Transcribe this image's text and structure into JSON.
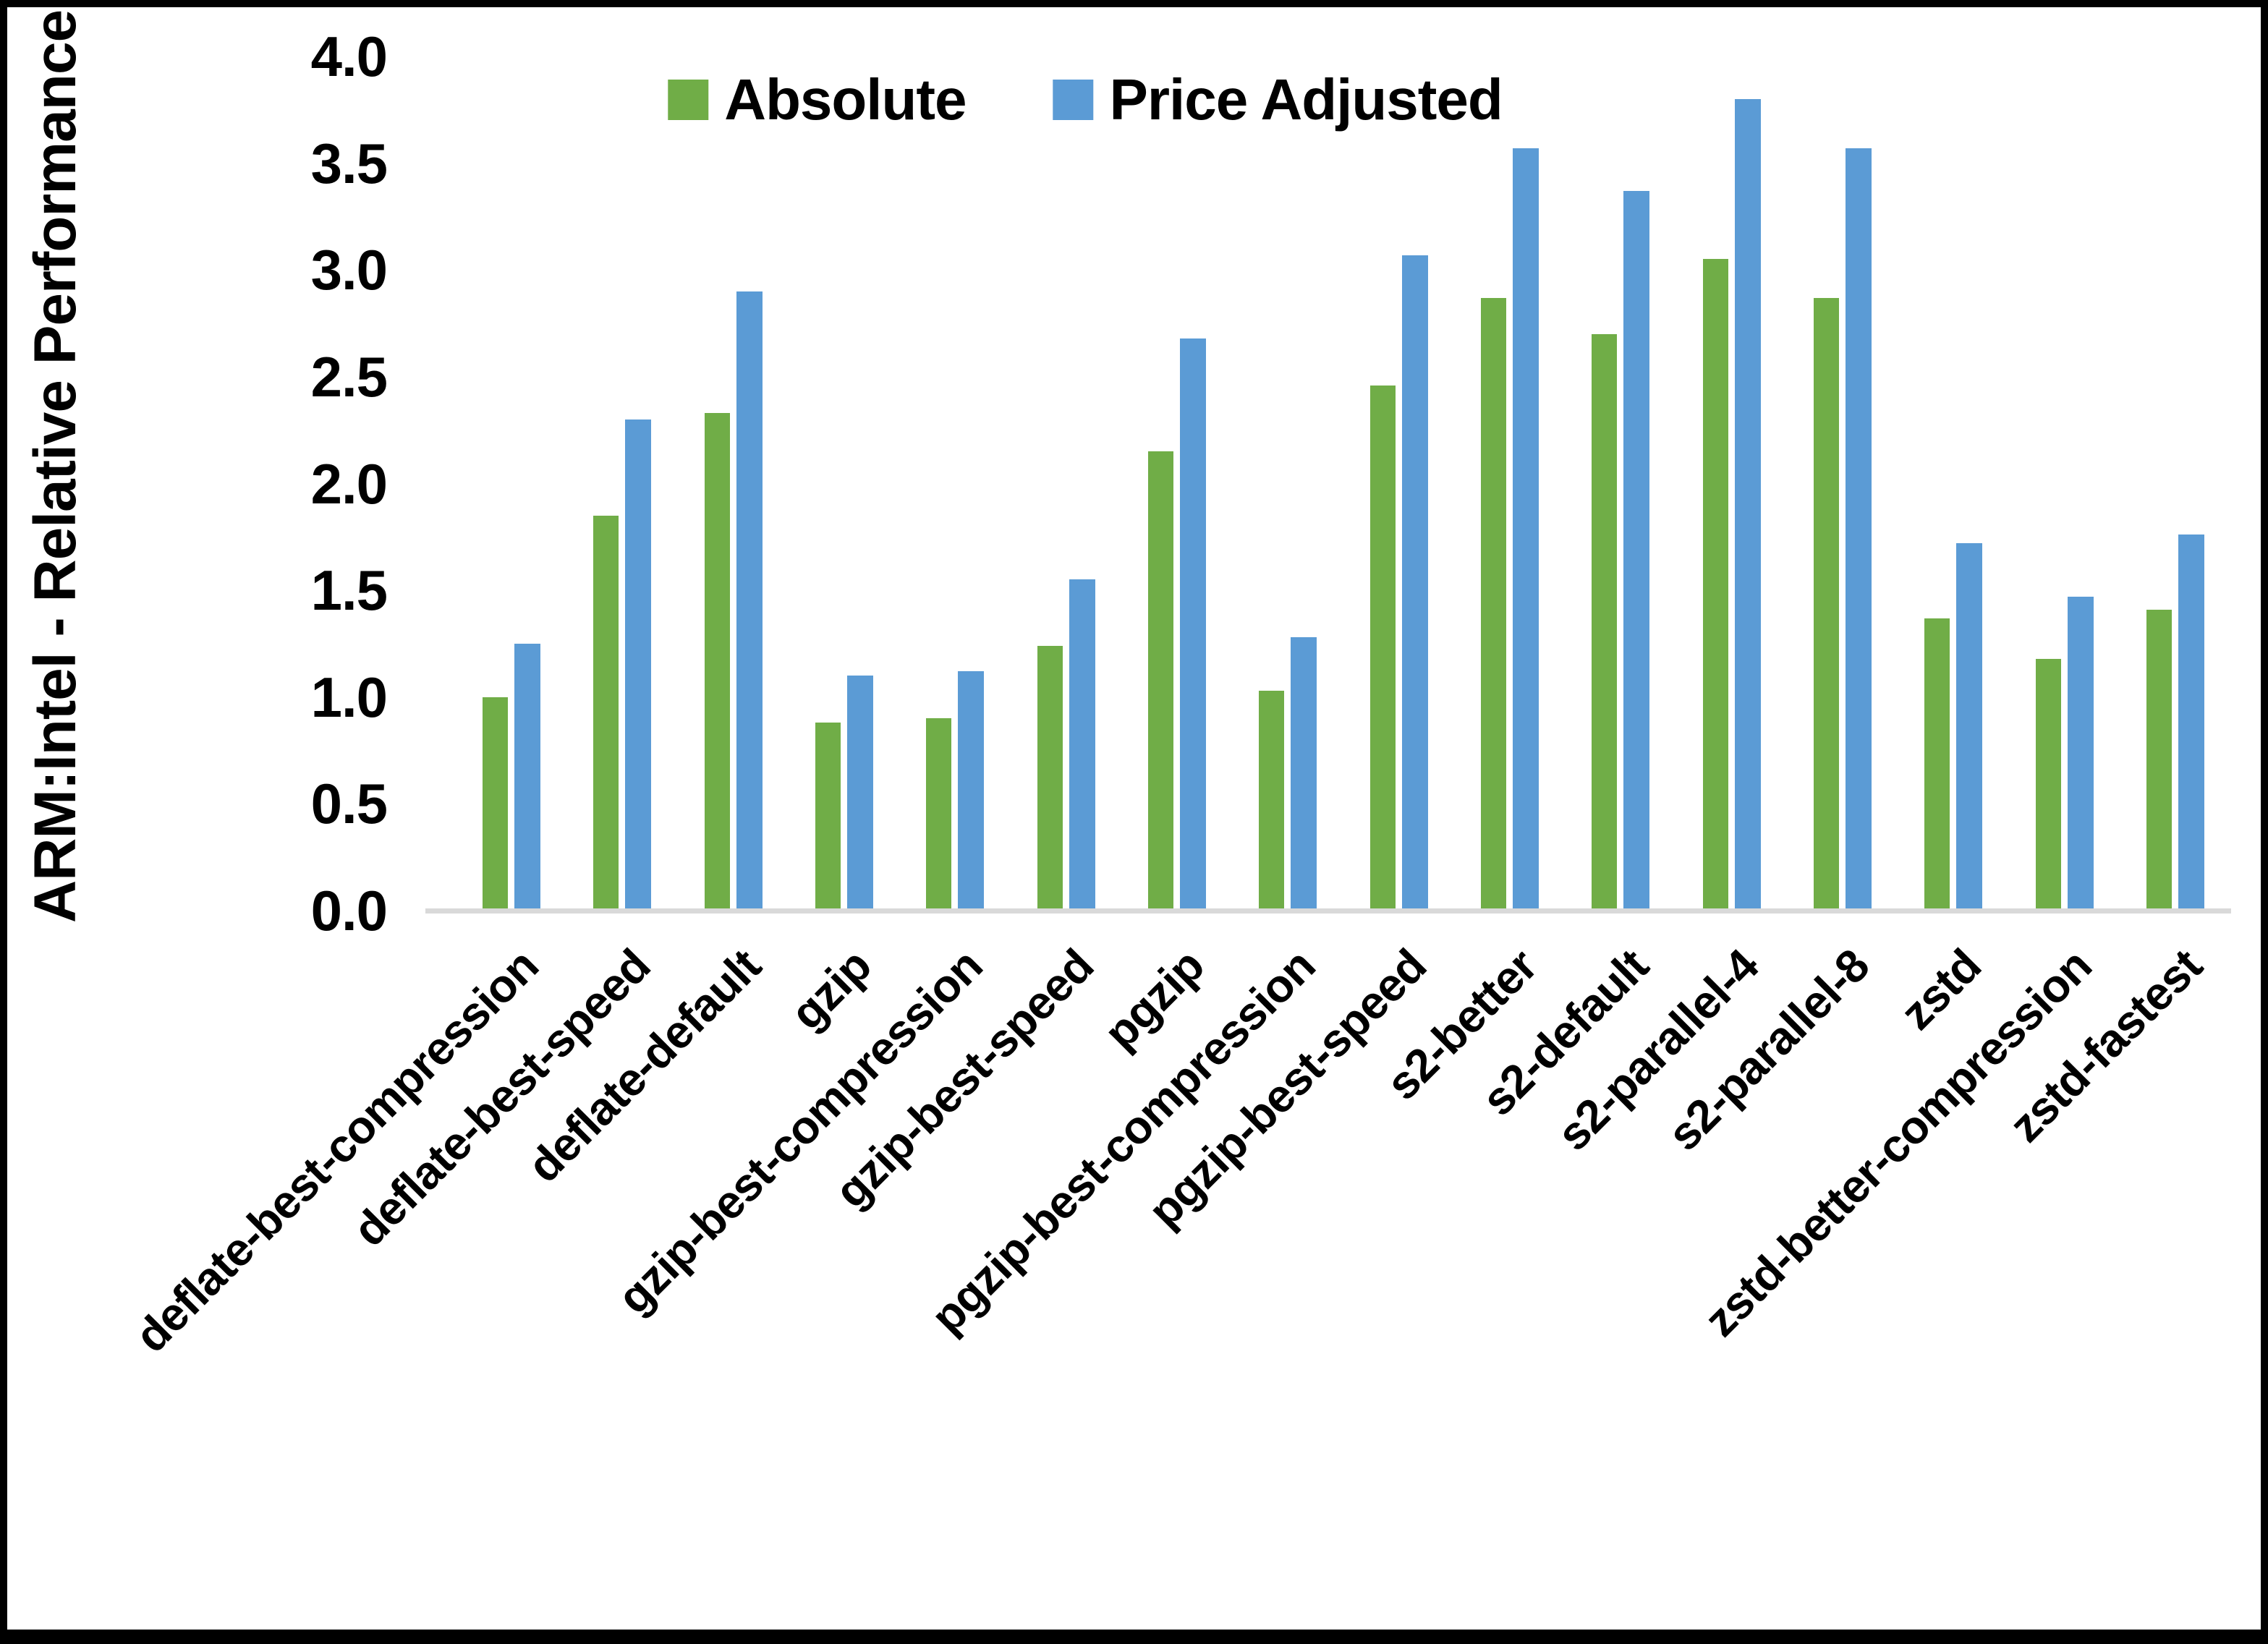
{
  "chart_data": {
    "type": "bar",
    "title": "",
    "xlabel": "",
    "ylabel": "ARM:Intel - Relative Performance",
    "ylim": [
      0.0,
      4.0
    ],
    "ytick_step": 0.5,
    "ytick_labels": [
      "0.0",
      "0.5",
      "1.0",
      "1.5",
      "2.0",
      "2.5",
      "3.0",
      "3.5",
      "4.0"
    ],
    "grid": false,
    "legend_position": "top-center",
    "axis_line_color": "#d9d9d9",
    "categories": [
      "deflate-best-compression",
      "deflate-best-speed",
      "deflate-default",
      "gzip",
      "gzip-best-compression",
      "gzip-best-speed",
      "pgzip",
      "pgzip-best-compression",
      "pgzip-best-speed",
      "s2-better",
      "s2-default",
      "s2-parallel-4",
      "s2-parallel-8",
      "zstd",
      "zstd-better-compression",
      "zstd-fastest"
    ],
    "series": [
      {
        "name": "Absolute",
        "color": "#70AD47",
        "values": [
          1.0,
          1.85,
          2.33,
          0.88,
          0.9,
          1.24,
          2.15,
          1.03,
          2.46,
          2.87,
          2.7,
          3.05,
          2.87,
          1.37,
          1.18,
          1.41
        ]
      },
      {
        "name": "Price Adjusted",
        "color": "#5B9BD5",
        "values": [
          1.25,
          2.3,
          2.9,
          1.1,
          1.12,
          1.55,
          2.68,
          1.28,
          3.07,
          3.57,
          3.37,
          3.8,
          3.57,
          1.72,
          1.47,
          1.76
        ]
      }
    ]
  }
}
